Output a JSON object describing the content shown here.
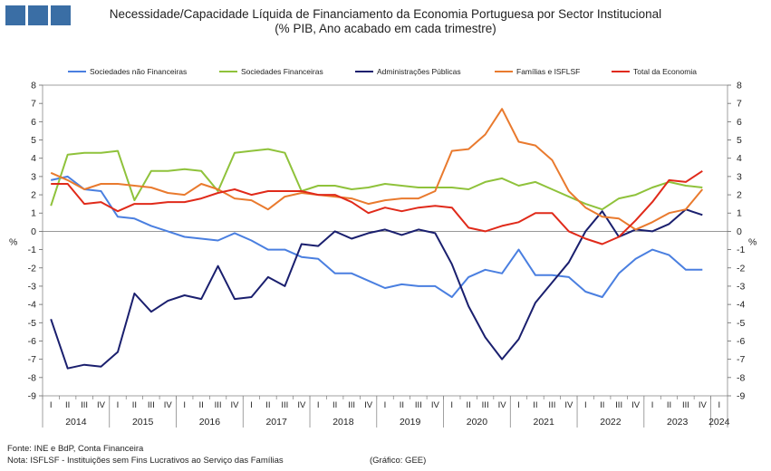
{
  "title": {
    "line1": "Necessidade/Capacidade Líquida de Financiamento da Economia Portuguesa por Sector Institucional",
    "line2": "(% PIB, Ano acabado em cada trimestre)"
  },
  "footer": {
    "source": "Fonte: INE e BdP, Conta Financeira",
    "note": "Nota: ISFLSF - Instituições sem Fins Lucrativos ao Serviço das Famílias",
    "credit": "(Gráfico: GEE)"
  },
  "chart_data": {
    "type": "line",
    "y_unit_label": "%",
    "ylim": [
      -9,
      8
    ],
    "yticks": [
      8,
      7,
      6,
      5,
      4,
      3,
      2,
      1,
      0,
      -1,
      -2,
      -3,
      -4,
      -5,
      -6,
      -7,
      -8,
      -9
    ],
    "legend_position": "top",
    "quarters": [
      "I",
      "II",
      "III",
      "IV",
      "I",
      "II",
      "III",
      "IV",
      "I",
      "II",
      "III",
      "IV",
      "I",
      "II",
      "III",
      "IV",
      "I",
      "II",
      "III",
      "IV",
      "I",
      "II",
      "III",
      "IV",
      "I",
      "II",
      "III",
      "IV",
      "I",
      "II",
      "III",
      "IV",
      "I",
      "II",
      "III",
      "IV",
      "I",
      "II",
      "III",
      "IV",
      "I"
    ],
    "years": [
      "2014",
      "2015",
      "2016",
      "2017",
      "2018",
      "2019",
      "2020",
      "2021",
      "2022",
      "2023",
      "2024"
    ],
    "series": [
      {
        "name": "Sociedades não Financeiras",
        "color": "#4a7fe0",
        "values": [
          2.8,
          3.0,
          2.3,
          2.2,
          0.8,
          0.7,
          0.3,
          0.0,
          -0.3,
          -0.4,
          -0.5,
          -0.1,
          -0.5,
          -1.0,
          -1.0,
          -1.4,
          -1.5,
          -2.3,
          -2.3,
          -2.7,
          -3.1,
          -2.9,
          -3.0,
          -3.0,
          -3.6,
          -2.5,
          -2.1,
          -2.3,
          -1.0,
          -2.4,
          -2.4,
          -2.5,
          -3.3,
          -3.6,
          -2.3,
          -1.5,
          -1.0,
          -1.3,
          -2.1,
          -2.1,
          null
        ]
      },
      {
        "name": "Sociedades Financeiras",
        "color": "#8fc23b",
        "values": [
          1.4,
          4.2,
          4.3,
          4.3,
          4.4,
          1.7,
          3.3,
          3.3,
          3.4,
          3.3,
          2.2,
          4.3,
          4.4,
          4.5,
          4.3,
          2.2,
          2.5,
          2.5,
          2.3,
          2.4,
          2.6,
          2.5,
          2.4,
          2.4,
          2.4,
          2.3,
          2.7,
          2.9,
          2.5,
          2.7,
          2.3,
          1.9,
          1.5,
          1.2,
          1.8,
          2.0,
          2.4,
          2.7,
          2.5,
          2.4,
          null
        ]
      },
      {
        "name": "Administrações Públicas",
        "color": "#1a1f6e",
        "values": [
          -4.8,
          -7.5,
          -7.3,
          -7.4,
          -6.6,
          -3.4,
          -4.4,
          -3.8,
          -3.5,
          -3.7,
          -1.9,
          -3.7,
          -3.6,
          -2.5,
          -3.0,
          -0.7,
          -0.8,
          0.0,
          -0.4,
          -0.1,
          0.1,
          -0.2,
          0.1,
          -0.1,
          -1.8,
          -4.1,
          -5.8,
          -7.0,
          -5.9,
          -3.9,
          -2.8,
          -1.7,
          0.0,
          1.1,
          -0.3,
          0.1,
          0.0,
          0.4,
          1.2,
          0.9,
          null
        ]
      },
      {
        "name": "Famílias e ISFLSF",
        "color": "#e97a2e",
        "values": [
          3.2,
          2.8,
          2.3,
          2.6,
          2.6,
          2.5,
          2.4,
          2.1,
          2.0,
          2.6,
          2.3,
          1.8,
          1.7,
          1.2,
          1.9,
          2.1,
          2.0,
          1.9,
          1.8,
          1.5,
          1.7,
          1.8,
          1.8,
          2.2,
          4.4,
          4.5,
          5.3,
          6.7,
          4.9,
          4.7,
          3.9,
          2.2,
          1.3,
          0.8,
          0.7,
          0.1,
          0.5,
          1.0,
          1.2,
          2.3,
          null
        ]
      },
      {
        "name": "Total da Economia",
        "color": "#e02a1a",
        "values": [
          2.6,
          2.6,
          1.5,
          1.6,
          1.1,
          1.5,
          1.5,
          1.6,
          1.6,
          1.8,
          2.1,
          2.3,
          2.0,
          2.2,
          2.2,
          2.2,
          2.0,
          2.0,
          1.6,
          1.0,
          1.3,
          1.1,
          1.3,
          1.4,
          1.3,
          0.2,
          0.0,
          0.3,
          0.5,
          1.0,
          1.0,
          0.0,
          -0.4,
          -0.7,
          -0.3,
          0.6,
          1.6,
          2.8,
          2.7,
          3.3,
          null
        ]
      }
    ]
  }
}
